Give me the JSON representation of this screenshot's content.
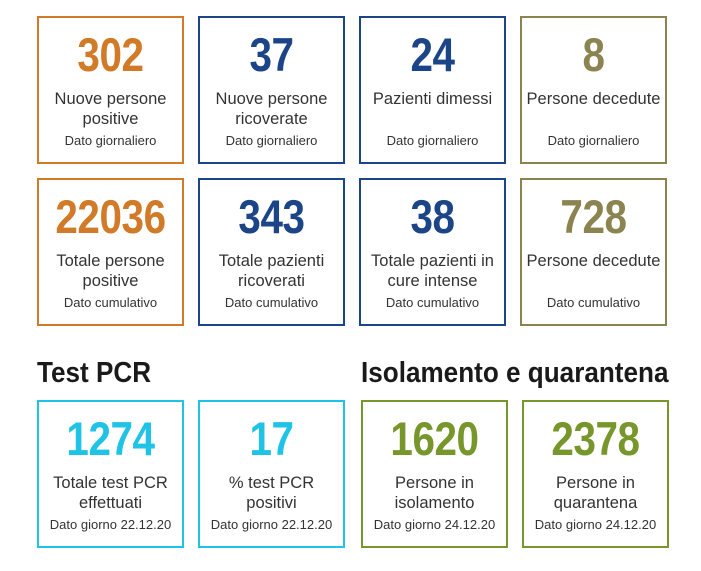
{
  "colors": {
    "orange": "#d17a27",
    "blue": "#1c4587",
    "olive": "#8b8451",
    "cyan": "#1fc3e6",
    "green": "#77962b"
  },
  "daily": [
    {
      "value": "302",
      "label": "Nuove persone positive",
      "sub": "Dato giornaliero"
    },
    {
      "value": "37",
      "label": "Nuove persone ricoverate",
      "sub": "Dato giornaliero"
    },
    {
      "value": "24",
      "label": "Pazienti dimessi",
      "sub": "Dato giornaliero"
    },
    {
      "value": "8",
      "label": "Persone decedute",
      "sub": "Dato giornaliero"
    }
  ],
  "cumulative": [
    {
      "value": "22036",
      "label": "Totale persone positive",
      "sub": "Dato cumulativo"
    },
    {
      "value": "343",
      "label": "Totale pazienti ricoverati",
      "sub": "Dato cumulativo"
    },
    {
      "value": "38",
      "label": "Totale pazienti in cure intense",
      "sub": "Dato cumulativo"
    },
    {
      "value": "728",
      "label": "Persone decedute",
      "sub": "Dato cumulativo"
    }
  ],
  "test_section": {
    "title": "Test PCR",
    "cards": [
      {
        "value": "1274",
        "label": "Totale test PCR effettuati",
        "sub": "Dato giorno 22.12.20"
      },
      {
        "value": "17",
        "label": "% test PCR positivi",
        "sub": "Dato giorno 22.12.20"
      }
    ]
  },
  "isolation_section": {
    "title": "Isolamento e quarantena",
    "cards": [
      {
        "value": "1620",
        "label": "Persone in isolamento",
        "sub": "Dato giorno 24.12.20"
      },
      {
        "value": "2378",
        "label": "Persone in quarantena",
        "sub": "Dato giorno 24.12.20"
      }
    ]
  }
}
